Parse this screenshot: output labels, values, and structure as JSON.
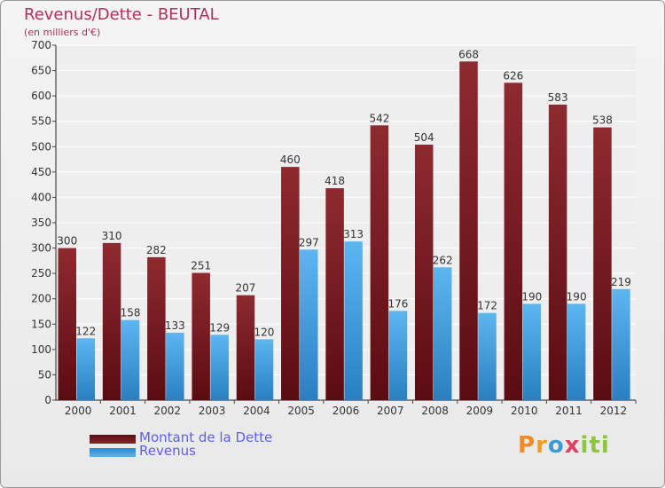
{
  "title": "Revenus/Dette - BEUTAL",
  "subtitle": "(en milliers d'€)",
  "colors": {
    "title": "#b0305a",
    "debt": "#7b1a20",
    "revenue": "#3f9fe0",
    "legend_text": "#5f5ff0"
  },
  "chart_data": {
    "type": "bar",
    "title": "Revenus/Dette - BEUTAL",
    "subtitle": "(en milliers d'€)",
    "categories": [
      "2000",
      "2001",
      "2002",
      "2003",
      "2004",
      "2005",
      "2006",
      "2007",
      "2008",
      "2009",
      "2010",
      "2011",
      "2012"
    ],
    "series": [
      {
        "name": "Montant de la Dette",
        "color": "#7b1a20",
        "values": [
          300,
          310,
          282,
          251,
          207,
          460,
          418,
          542,
          504,
          668,
          626,
          583,
          538
        ]
      },
      {
        "name": "Revenus",
        "color": "#3f9fe0",
        "values": [
          122,
          158,
          133,
          129,
          120,
          297,
          313,
          176,
          262,
          172,
          190,
          190,
          219
        ]
      }
    ],
    "ylim": [
      0,
      700
    ],
    "yticks": [
      0,
      50,
      100,
      150,
      200,
      250,
      300,
      350,
      400,
      450,
      500,
      550,
      600,
      650,
      700
    ],
    "grid": true,
    "legend_position": "bottom-left"
  },
  "legend": {
    "debt_label": "Montant de la Dette",
    "revenue_label": "Revenus"
  },
  "logo": {
    "letters": [
      "P",
      "r",
      "o",
      "x",
      "i",
      "t",
      "i"
    ],
    "colors": [
      "#f08a24",
      "#f0a020",
      "#3a9bd8",
      "#e04060",
      "#8cc63f",
      "#8cc63f",
      "#8cc63f"
    ]
  }
}
